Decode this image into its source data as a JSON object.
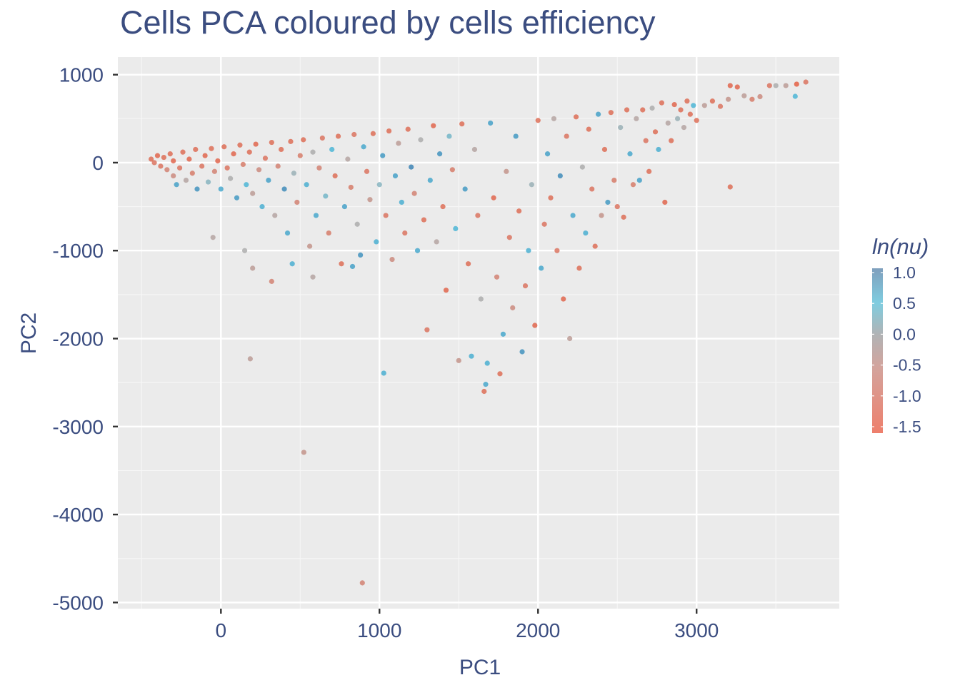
{
  "chart_data": {
    "type": "scatter",
    "title": "Cells PCA coloured by cells efficiency",
    "xlabel": "PC1",
    "ylabel": "PC2",
    "xlim": [
      -650,
      3900
    ],
    "ylim": [
      -5070,
      1200
    ],
    "x_ticks": [
      0,
      1000,
      2000,
      3000
    ],
    "x_tick_labels": [
      "0",
      "1000",
      "2000",
      "3000"
    ],
    "y_ticks": [
      1000,
      0,
      -1000,
      -2000,
      -3000,
      -4000,
      -5000
    ],
    "y_tick_labels": [
      "1000",
      "0",
      "-1000",
      "-2000",
      "-3000",
      "-4000",
      "-5000"
    ],
    "grid": true,
    "legend": {
      "title": "ln(nu)",
      "position": "right",
      "type": "colorbar",
      "range": [
        -1.6,
        1.05
      ],
      "ticks": [
        1.0,
        0.5,
        0.0,
        -0.5,
        -1.0,
        -1.5
      ],
      "tick_labels": [
        "1.0",
        "0.5",
        "0.0",
        "-0.5",
        "-1.0",
        "-1.5"
      ],
      "colors": {
        "-1.5": "#e4573a",
        "-1.0": "#d17c6c",
        "-0.5": "#a9a9a9",
        "0.0": "#45bada",
        "1.0": "#2f6fa8"
      }
    },
    "point_fields": [
      "PC1",
      "PC2",
      "ln(nu)"
    ],
    "points": [
      [
        -440,
        40,
        -1.3
      ],
      [
        -420,
        0,
        -1.2
      ],
      [
        -400,
        80,
        -1.4
      ],
      [
        -380,
        -40,
        -1.2
      ],
      [
        -360,
        60,
        -1.3
      ],
      [
        -340,
        -80,
        -1.0
      ],
      [
        -320,
        100,
        -1.3
      ],
      [
        -300,
        20,
        -1.4
      ],
      [
        -300,
        -150,
        -0.9
      ],
      [
        -280,
        -250,
        0.4
      ],
      [
        -260,
        -60,
        -1.2
      ],
      [
        -240,
        120,
        -1.3
      ],
      [
        -220,
        -200,
        -0.6
      ],
      [
        -200,
        40,
        -1.4
      ],
      [
        -180,
        -120,
        -1.1
      ],
      [
        -160,
        150,
        -1.3
      ],
      [
        -150,
        -300,
        0.6
      ],
      [
        -120,
        -40,
        -1.2
      ],
      [
        -100,
        80,
        -1.4
      ],
      [
        -80,
        -220,
        -0.3
      ],
      [
        -60,
        160,
        -1.3
      ],
      [
        -40,
        -100,
        -1.0
      ],
      [
        -20,
        20,
        -1.4
      ],
      [
        0,
        -300,
        0.3
      ],
      [
        20,
        180,
        -1.3
      ],
      [
        40,
        -60,
        -1.2
      ],
      [
        60,
        -180,
        -0.5
      ],
      [
        80,
        100,
        -1.4
      ],
      [
        100,
        -400,
        0.5
      ],
      [
        120,
        200,
        -1.3
      ],
      [
        140,
        -20,
        -1.1
      ],
      [
        160,
        -250,
        0.1
      ],
      [
        180,
        120,
        -1.3
      ],
      [
        200,
        -350,
        -0.7
      ],
      [
        220,
        210,
        -1.4
      ],
      [
        240,
        -80,
        -0.9
      ],
      [
        260,
        -500,
        0.2
      ],
      [
        280,
        50,
        -1.2
      ],
      [
        300,
        -200,
        0.4
      ],
      [
        320,
        230,
        -1.3
      ],
      [
        340,
        -600,
        -0.6
      ],
      [
        360,
        -40,
        -1.0
      ],
      [
        380,
        150,
        -1.3
      ],
      [
        400,
        -300,
        0.7
      ],
      [
        420,
        -800,
        0.3
      ],
      [
        440,
        240,
        -1.3
      ],
      [
        460,
        -120,
        -0.4
      ],
      [
        480,
        -450,
        -1.0
      ],
      [
        500,
        80,
        -1.1
      ],
      [
        520,
        260,
        -1.3
      ],
      [
        540,
        -250,
        0.2
      ],
      [
        560,
        -950,
        -0.8
      ],
      [
        580,
        120,
        -0.5
      ],
      [
        600,
        -600,
        0.3
      ],
      [
        620,
        -60,
        -1.0
      ],
      [
        640,
        280,
        -1.2
      ],
      [
        660,
        -380,
        -0.2
      ],
      [
        680,
        -800,
        -1.1
      ],
      [
        700,
        150,
        0.1
      ],
      [
        720,
        -150,
        -1.3
      ],
      [
        740,
        300,
        -1.3
      ],
      [
        760,
        -1150,
        -1.3
      ],
      [
        780,
        -500,
        0.4
      ],
      [
        800,
        40,
        -0.6
      ],
      [
        820,
        -280,
        -1.1
      ],
      [
        840,
        320,
        -1.2
      ],
      [
        860,
        -700,
        -0.5
      ],
      [
        880,
        -1050,
        0.6
      ],
      [
        900,
        180,
        0.3
      ],
      [
        920,
        -100,
        -1.2
      ],
      [
        940,
        -420,
        -0.8
      ],
      [
        960,
        330,
        -1.3
      ],
      [
        980,
        -900,
        0.2
      ],
      [
        1000,
        -250,
        -0.3
      ],
      [
        1020,
        80,
        0.5
      ],
      [
        1040,
        -600,
        -1.2
      ],
      [
        1060,
        360,
        -1.3
      ],
      [
        1080,
        -1100,
        -0.9
      ],
      [
        1100,
        -150,
        0.4
      ],
      [
        1120,
        220,
        -0.7
      ],
      [
        1140,
        -450,
        0.2
      ],
      [
        1160,
        -800,
        -1.2
      ],
      [
        1180,
        380,
        -1.3
      ],
      [
        1200,
        -50,
        0.8
      ],
      [
        1220,
        -350,
        -1.0
      ],
      [
        1240,
        -1000,
        0.3
      ],
      [
        1260,
        260,
        -0.5
      ],
      [
        1280,
        -650,
        -1.3
      ],
      [
        1300,
        -1900,
        -1.2
      ],
      [
        1320,
        -200,
        0.3
      ],
      [
        1340,
        420,
        -1.4
      ],
      [
        1360,
        -900,
        -0.6
      ],
      [
        1380,
        100,
        0.6
      ],
      [
        1400,
        -500,
        -1.3
      ],
      [
        1420,
        -1450,
        -1.4
      ],
      [
        1440,
        300,
        -0.2
      ],
      [
        1460,
        -80,
        -1.1
      ],
      [
        1480,
        -750,
        0.1
      ],
      [
        1500,
        -2250,
        -0.8
      ],
      [
        1520,
        440,
        -1.3
      ],
      [
        1540,
        -300,
        0.5
      ],
      [
        1560,
        -1150,
        -1.3
      ],
      [
        1580,
        -2200,
        0.2
      ],
      [
        1600,
        150,
        -0.6
      ],
      [
        1620,
        -600,
        -1.2
      ],
      [
        1640,
        -1550,
        -0.5
      ],
      [
        1660,
        -2600,
        -1.3
      ],
      [
        1670,
        -2520,
        0.3
      ],
      [
        1680,
        -2280,
        0.2
      ],
      [
        1700,
        450,
        0.4
      ],
      [
        1720,
        -400,
        -1.4
      ],
      [
        1740,
        -1300,
        -1.0
      ],
      [
        1760,
        -2400,
        -1.3
      ],
      [
        1780,
        -1950,
        0.3
      ],
      [
        1800,
        -100,
        -0.8
      ],
      [
        1820,
        -850,
        -1.2
      ],
      [
        1840,
        -1650,
        -0.9
      ],
      [
        1860,
        300,
        0.5
      ],
      [
        1880,
        -550,
        -1.3
      ],
      [
        1900,
        -2150,
        0.6
      ],
      [
        1920,
        -1400,
        -1.2
      ],
      [
        1940,
        -1000,
        0.2
      ],
      [
        1960,
        -250,
        -0.4
      ],
      [
        1980,
        -1850,
        -1.4
      ],
      [
        2000,
        480,
        -1.3
      ],
      [
        2020,
        -1200,
        0.3
      ],
      [
        2040,
        -700,
        -1.2
      ],
      [
        2060,
        100,
        0.4
      ],
      [
        2080,
        -400,
        -1.3
      ],
      [
        2100,
        500,
        -0.6
      ],
      [
        2120,
        -1000,
        -1.2
      ],
      [
        2140,
        -150,
        0.7
      ],
      [
        2160,
        -1550,
        -1.4
      ],
      [
        2180,
        300,
        -1.2
      ],
      [
        2200,
        -2000,
        -0.7
      ],
      [
        2220,
        -600,
        0.3
      ],
      [
        2240,
        520,
        -1.3
      ],
      [
        2260,
        -1200,
        -1.3
      ],
      [
        2280,
        -50,
        -0.5
      ],
      [
        2300,
        -800,
        0.2
      ],
      [
        2320,
        380,
        -1.3
      ],
      [
        2340,
        -300,
        -1.2
      ],
      [
        2360,
        -950,
        -1.3
      ],
      [
        2380,
        550,
        0.4
      ],
      [
        2400,
        -600,
        -0.8
      ],
      [
        2420,
        150,
        -1.3
      ],
      [
        2440,
        -450,
        0.5
      ],
      [
        2460,
        570,
        -1.3
      ],
      [
        2480,
        -200,
        -1.1
      ],
      [
        2500,
        -500,
        -1.2
      ],
      [
        2520,
        400,
        -0.4
      ],
      [
        2540,
        -620,
        -1.3
      ],
      [
        2560,
        600,
        -1.3
      ],
      [
        2580,
        100,
        0.3
      ],
      [
        2600,
        -250,
        -1.1
      ],
      [
        2620,
        500,
        -0.6
      ],
      [
        2640,
        -200,
        0.4
      ],
      [
        2660,
        600,
        -1.3
      ],
      [
        2680,
        250,
        -1.2
      ],
      [
        2700,
        -100,
        -1.3
      ],
      [
        2720,
        620,
        -0.5
      ],
      [
        2740,
        350,
        -1.3
      ],
      [
        2760,
        150,
        0.2
      ],
      [
        2780,
        680,
        -1.3
      ],
      [
        2800,
        -450,
        -1.4
      ],
      [
        2820,
        450,
        -0.6
      ],
      [
        2840,
        250,
        -1.3
      ],
      [
        2860,
        660,
        -1.4
      ],
      [
        2880,
        500,
        -0.4
      ],
      [
        2900,
        600,
        -1.3
      ],
      [
        2920,
        400,
        -0.6
      ],
      [
        2940,
        700,
        -1.3
      ],
      [
        2960,
        550,
        -1.3
      ],
      [
        2980,
        650,
        0.1
      ],
      [
        3000,
        480,
        -1.3
      ],
      [
        3050,
        650,
        -0.7
      ],
      [
        3100,
        700,
        -1.3
      ],
      [
        3150,
        640,
        -1.2
      ],
      [
        3200,
        720,
        -0.8
      ],
      [
        3212,
        -276,
        -1.3
      ],
      [
        3212,
        876,
        -1.4
      ],
      [
        3257,
        860,
        -1.4
      ],
      [
        3300,
        760,
        -0.7
      ],
      [
        3350,
        720,
        -1.1
      ],
      [
        3400,
        750,
        -0.9
      ],
      [
        3460,
        876,
        -1.2
      ],
      [
        3500,
        876,
        -0.5
      ],
      [
        3563,
        876,
        -0.7
      ],
      [
        3622,
        754,
        0.1
      ],
      [
        3631,
        892,
        -1.5
      ],
      [
        3689,
        916,
        -1.2
      ],
      [
        185,
        -2230,
        -0.7
      ],
      [
        523,
        -3293,
        -0.8
      ],
      [
        892,
        -4777,
        -1.0
      ],
      [
        1027,
        -2393,
        0.2
      ],
      [
        -50,
        -850,
        -0.6
      ],
      [
        150,
        -1000,
        -0.5
      ],
      [
        200,
        -1200,
        -0.7
      ],
      [
        320,
        -1350,
        -1.0
      ],
      [
        450,
        -1150,
        0.2
      ],
      [
        580,
        -1300,
        -0.6
      ],
      [
        830,
        -1180,
        0.4
      ]
    ]
  }
}
